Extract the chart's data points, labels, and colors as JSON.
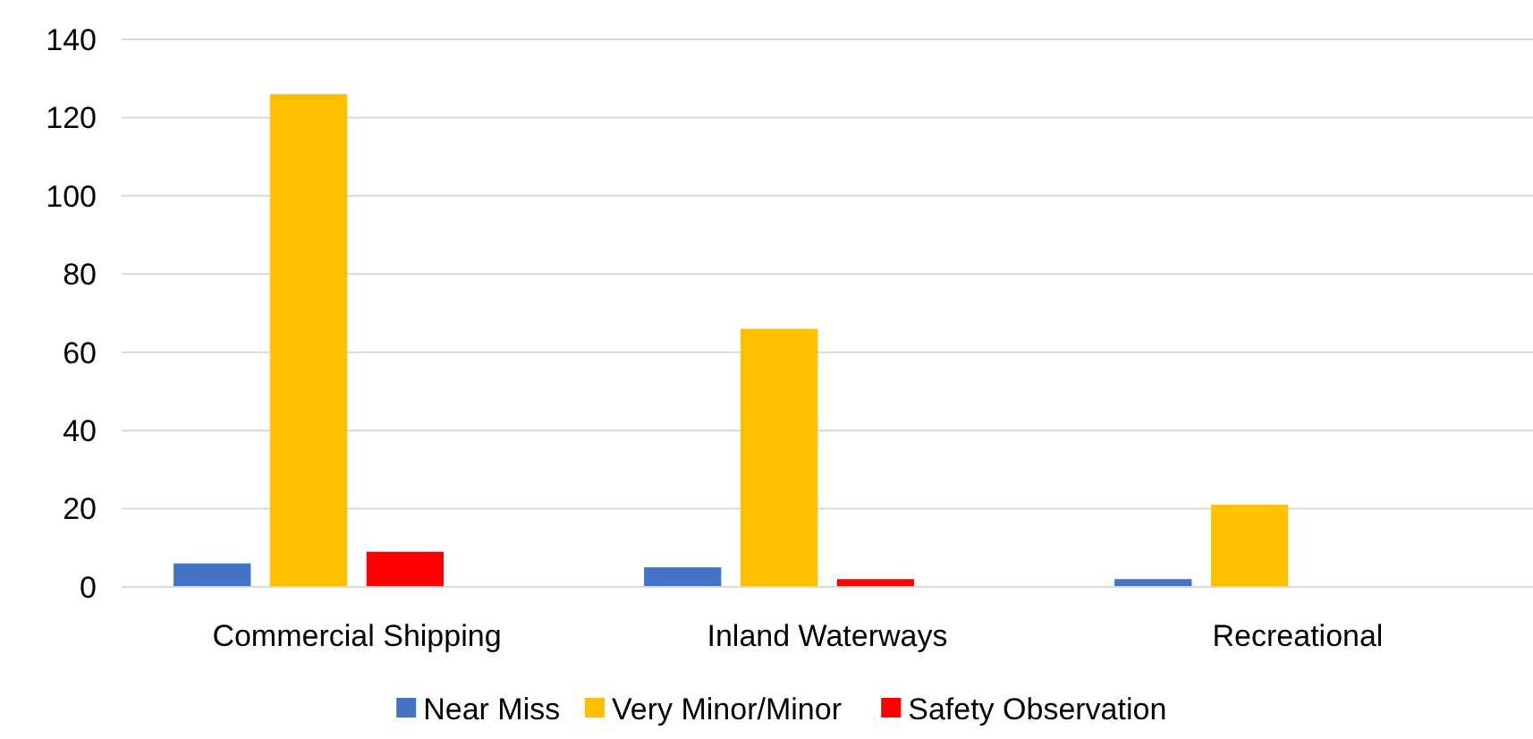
{
  "chart_data": {
    "type": "bar",
    "categories": [
      "Commercial Shipping",
      "Inland Waterways",
      "Recreational"
    ],
    "series": [
      {
        "name": "Near Miss",
        "color": "#4472c4",
        "values": [
          6,
          5,
          2
        ]
      },
      {
        "name": "Very Minor/Minor",
        "color": "#ffc000",
        "values": [
          126,
          66,
          21
        ]
      },
      {
        "name": "Safety Observation",
        "color": "#ff0000",
        "values": [
          9,
          2,
          0
        ]
      }
    ],
    "ylim": [
      0,
      140
    ],
    "yticks": [
      0,
      20,
      40,
      60,
      80,
      100,
      120,
      140
    ],
    "grid": "y",
    "legend": "bottom"
  }
}
